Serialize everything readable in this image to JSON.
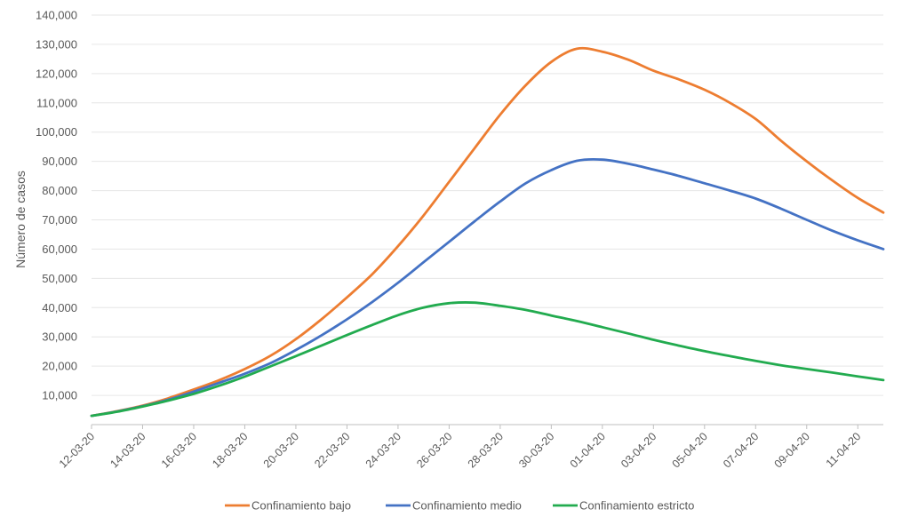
{
  "chart_data": {
    "type": "line",
    "ylabel": "Número de casos",
    "xlabel": "",
    "ylim": [
      0,
      140000
    ],
    "yticks": [
      10000,
      20000,
      30000,
      40000,
      50000,
      60000,
      70000,
      80000,
      90000,
      100000,
      110000,
      120000,
      130000,
      140000
    ],
    "ytick_labels": [
      "10,000",
      "20,000",
      "30,000",
      "40,000",
      "50,000",
      "60,000",
      "70,000",
      "80,000",
      "90,000",
      "100,000",
      "110,000",
      "120,000",
      "130,000",
      "140,000"
    ],
    "grid": true,
    "legend_position": "bottom",
    "x": [
      "12-03-20",
      "13-03-20",
      "14-03-20",
      "15-03-20",
      "16-03-20",
      "17-03-20",
      "18-03-20",
      "19-03-20",
      "20-03-20",
      "21-03-20",
      "22-03-20",
      "23-03-20",
      "24-03-20",
      "25-03-20",
      "26-03-20",
      "27-03-20",
      "28-03-20",
      "29-03-20",
      "30-03-20",
      "31-03-20",
      "01-04-20",
      "02-04-20",
      "03-04-20",
      "04-04-20",
      "05-04-20",
      "06-04-20",
      "07-04-20",
      "08-04-20",
      "09-04-20",
      "10-04-20",
      "11-04-20",
      "12-04-20"
    ],
    "x_tick_labels": [
      "12-03-20",
      "14-03-20",
      "16-03-20",
      "18-03-20",
      "20-03-20",
      "22-03-20",
      "24-03-20",
      "26-03-20",
      "28-03-20",
      "30-03-20",
      "01-04-20",
      "03-04-20",
      "05-04-20",
      "07-04-20",
      "09-04-20",
      "11-04-20"
    ],
    "series": [
      {
        "name": "Confinamiento bajo",
        "color": "#ED7D31",
        "values": [
          3000,
          4600,
          6500,
          9000,
          12000,
          15200,
          19000,
          23500,
          29200,
          36000,
          43500,
          51500,
          61000,
          71500,
          83000,
          94500,
          106000,
          116000,
          124000,
          128500,
          127500,
          124800,
          121000,
          118000,
          114500,
          110000,
          104500,
          97000,
          90000,
          83500,
          77500,
          72500
        ]
      },
      {
        "name": "Confinamiento medio",
        "color": "#4472C4",
        "values": [
          3000,
          4500,
          6300,
          8500,
          11300,
          14300,
          17400,
          21000,
          25500,
          30500,
          36000,
          42000,
          48500,
          55500,
          62500,
          69500,
          76300,
          82500,
          87000,
          90200,
          90600,
          89200,
          87200,
          85000,
          82500,
          80000,
          77300,
          73800,
          70000,
          66300,
          63000,
          60000
        ]
      },
      {
        "name": "Confinamiento estricto",
        "color": "#22AB4F",
        "values": [
          3000,
          4400,
          6200,
          8200,
          10500,
          13300,
          16400,
          19900,
          23400,
          27000,
          30600,
          34100,
          37400,
          40000,
          41500,
          41700,
          40600,
          39200,
          37300,
          35400,
          33300,
          31200,
          29000,
          27000,
          25100,
          23400,
          21800,
          20300,
          19000,
          17800,
          16500,
          15200
        ]
      }
    ]
  }
}
